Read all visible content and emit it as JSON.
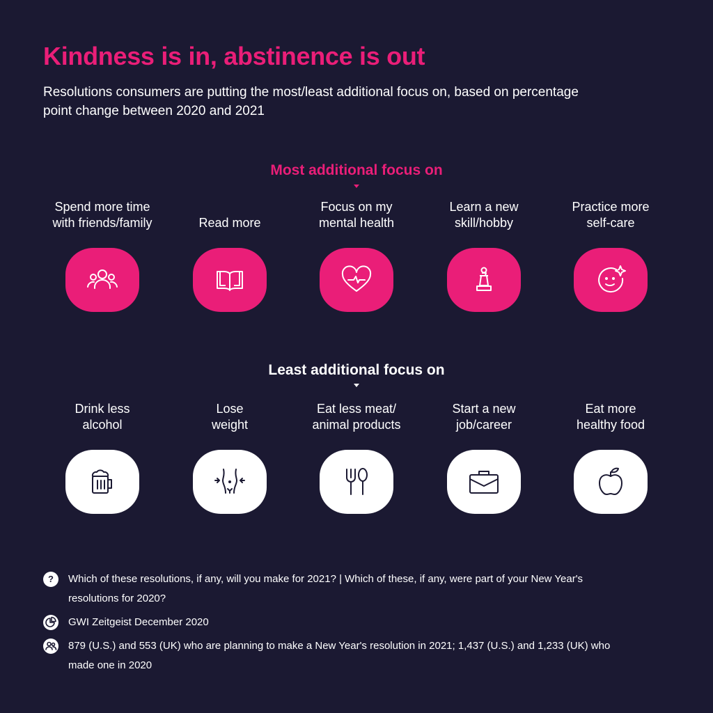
{
  "title": "Kindness is in, abstinence is out",
  "subtitle": "Resolutions consumers are putting the most/least additional focus on, based on percentage point change between 2020 and 2021",
  "colors": {
    "background": "#1b1932",
    "accent": "#ea1e78",
    "white": "#ffffff"
  },
  "most": {
    "heading": "Most additional focus on",
    "items": [
      {
        "line1": "Spend more time",
        "line2": "with friends/family",
        "icon": "people-group-icon"
      },
      {
        "line1": "",
        "line2": "Read more",
        "icon": "open-book-icon"
      },
      {
        "line1": "Focus on my",
        "line2": "mental health",
        "icon": "heart-pulse-icon"
      },
      {
        "line1": "Learn a new",
        "line2": "skill/hobby",
        "icon": "chess-pawn-icon"
      },
      {
        "line1": "Practice more",
        "line2": "self-care",
        "icon": "smiley-sparkle-icon"
      }
    ]
  },
  "least": {
    "heading": "Least additional focus on",
    "items": [
      {
        "line1": "Drink less",
        "line2": "alcohol",
        "icon": "beer-mug-icon"
      },
      {
        "line1": "Lose",
        "line2": "weight",
        "icon": "waist-icon"
      },
      {
        "line1": "Eat less meat/",
        "line2": "animal products",
        "icon": "fork-spoon-icon"
      },
      {
        "line1": "Start a new",
        "line2": "job/career",
        "icon": "briefcase-icon"
      },
      {
        "line1": "Eat more",
        "line2": "healthy food",
        "icon": "apple-icon"
      }
    ]
  },
  "footnotes": {
    "question_icon_glyph": "?",
    "question": "Which of these resolutions, if any, will you make for 2021? | Which of these, if any, were part of your New Year's resolutions for 2020?",
    "source": "GWI Zeitgeist December 2020",
    "base": "879 (U.S.) and 553 (UK) who are planning to make a New Year's resolution in 2021; 1,437 (U.S.) and 1,233 (UK) who made one in 2020"
  }
}
